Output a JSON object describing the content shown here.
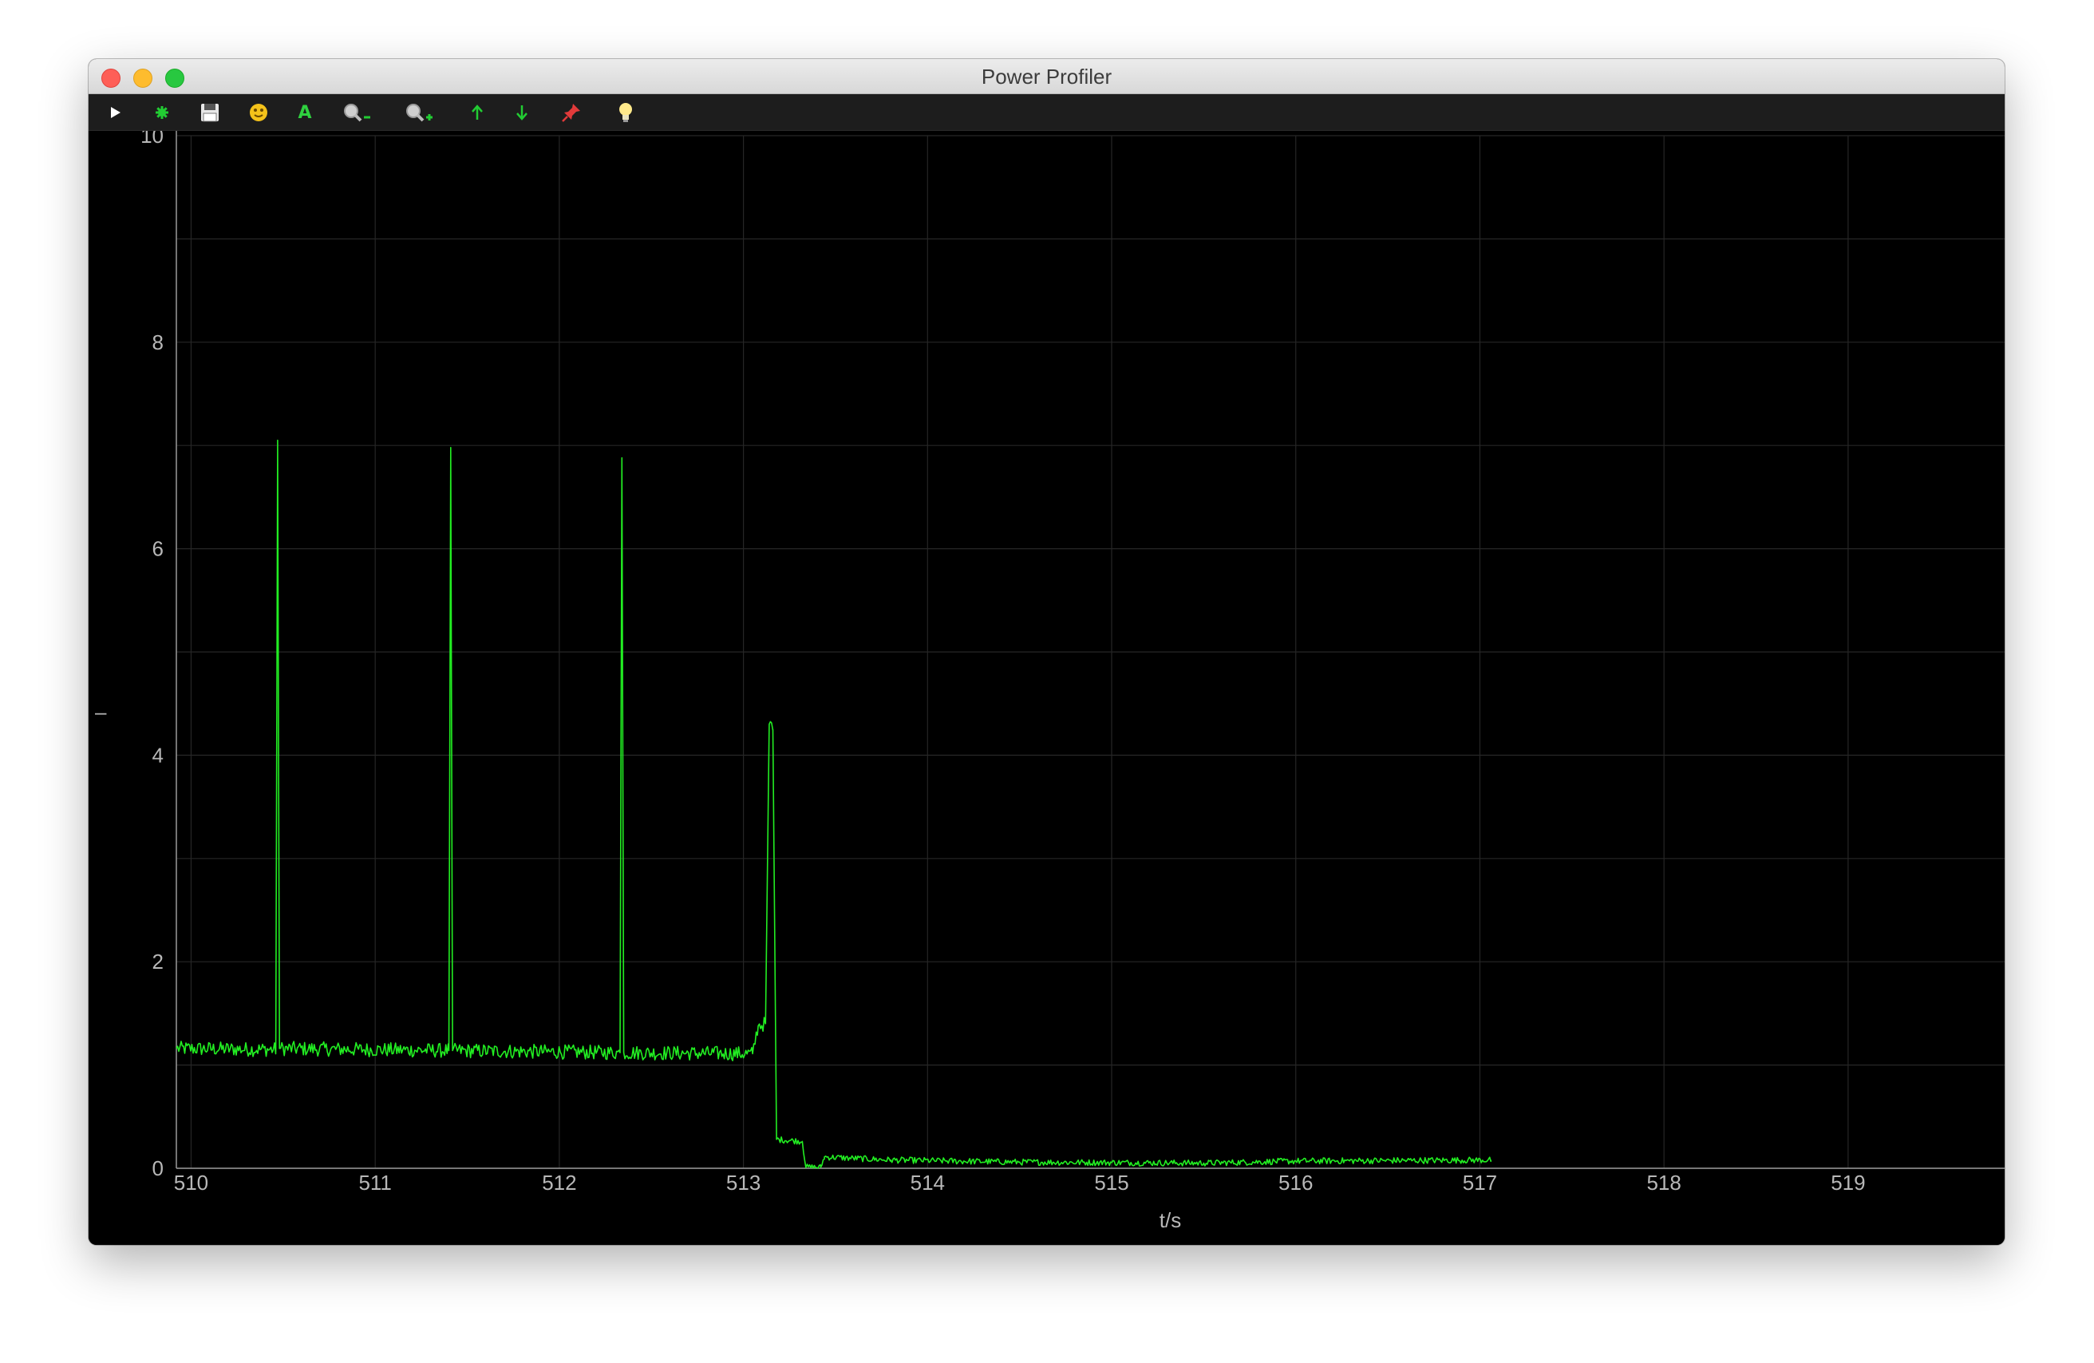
{
  "window": {
    "title": "Power Profiler"
  },
  "toolbar": {
    "buttons": [
      {
        "id": "play",
        "icon": "play-icon"
      },
      {
        "id": "record",
        "icon": "gear-icon"
      },
      {
        "id": "save",
        "icon": "save-icon"
      },
      {
        "id": "face",
        "icon": "smiley-icon"
      },
      {
        "id": "auto",
        "icon": "auto-scale-icon",
        "label": "A"
      },
      {
        "id": "zoom-out",
        "icon": "zoom-out-icon"
      },
      {
        "id": "zoom-in",
        "icon": "zoom-in-icon"
      },
      {
        "id": "scale-up",
        "icon": "arrow-up-icon"
      },
      {
        "id": "scale-down",
        "icon": "arrow-down-icon"
      },
      {
        "id": "pin",
        "icon": "pin-icon"
      },
      {
        "id": "light",
        "icon": "lightbulb-icon"
      }
    ]
  },
  "side_marker": "–",
  "auto_badge": "A",
  "colors": {
    "trace": "#22ee22",
    "grid": "#262626",
    "axis": "#9a9a9a",
    "background": "#000000"
  },
  "chart_data": {
    "type": "line",
    "xlabel": "t/s",
    "ylabel": "",
    "xlim": [
      509.92,
      519.85
    ],
    "ylim": [
      0,
      10
    ],
    "x_ticks": [
      510,
      511,
      512,
      513,
      514,
      515,
      516,
      517,
      518,
      519
    ],
    "y_ticks": [
      0,
      2,
      4,
      6,
      8,
      10
    ],
    "y_tick_labels": [
      "0",
      "2",
      "4",
      "6",
      "8",
      "10"
    ],
    "grid": true,
    "series": [
      {
        "color": "#22ee22",
        "points": [
          [
            509.92,
            1.16
          ],
          [
            510.46,
            1.15
          ],
          [
            510.47,
            7.05
          ],
          [
            510.48,
            1.16
          ],
          [
            511.4,
            1.14
          ],
          [
            511.41,
            6.98
          ],
          [
            511.42,
            1.14
          ],
          [
            512.33,
            1.12
          ],
          [
            512.34,
            6.88
          ],
          [
            512.35,
            1.12
          ],
          [
            513.05,
            1.11
          ],
          [
            513.08,
            1.38
          ],
          [
            513.12,
            1.4
          ],
          [
            513.14,
            4.3
          ],
          [
            513.16,
            4.25
          ],
          [
            513.18,
            0.28
          ],
          [
            513.32,
            0.26
          ],
          [
            513.34,
            0.01
          ],
          [
            513.42,
            0.01
          ],
          [
            513.44,
            0.11
          ],
          [
            513.8,
            0.08
          ],
          [
            514.5,
            0.06
          ],
          [
            515.5,
            0.05
          ],
          [
            516.0,
            0.07
          ],
          [
            517.06,
            0.08
          ]
        ]
      }
    ]
  }
}
